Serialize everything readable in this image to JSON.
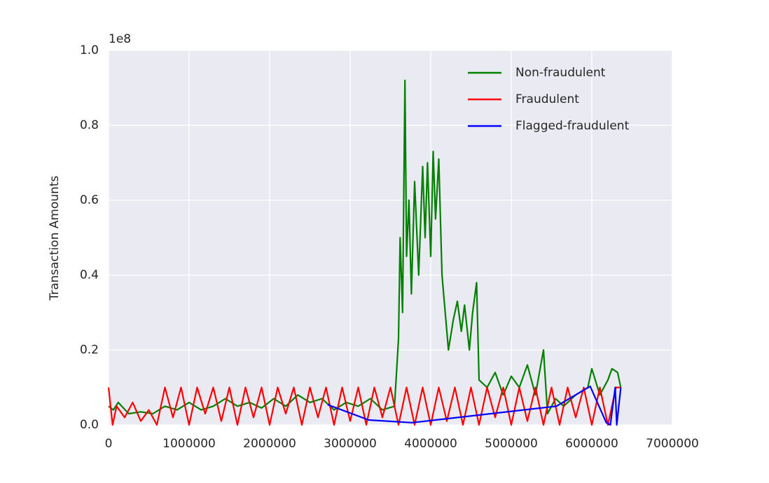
{
  "chart_data": {
    "type": "line",
    "ylabel": "Transaction Amounts",
    "y_offset_label": "1e8",
    "xlim": [
      0,
      7000000
    ],
    "xticks": [
      0,
      1000000,
      2000000,
      3000000,
      4000000,
      5000000,
      6000000,
      7000000
    ],
    "ylim": [
      0,
      1
    ],
    "yticks": [
      {
        "value": 0,
        "label": "0.0"
      },
      0.2,
      0.4,
      0.6,
      0.8,
      {
        "value": 1,
        "label": "1.0"
      }
    ],
    "grid": true,
    "legend": "upper right",
    "series": [
      {
        "name": "Non-fraudulent",
        "color": "#008000",
        "x": [
          0,
          60000,
          120000,
          250000,
          400000,
          550000,
          700000,
          850000,
          1000000,
          1150000,
          1300000,
          1450000,
          1600000,
          1750000,
          1900000,
          2050000,
          2200000,
          2350000,
          2500000,
          2650000,
          2800000,
          2950000,
          3100000,
          3250000,
          3400000,
          3550000,
          3600000,
          3620000,
          3650000,
          3680000,
          3700000,
          3730000,
          3760000,
          3800000,
          3850000,
          3900000,
          3930000,
          3960000,
          4000000,
          4030000,
          4060000,
          4100000,
          4140000,
          4180000,
          4220000,
          4280000,
          4330000,
          4380000,
          4420000,
          4480000,
          4520000,
          4570000,
          4600000,
          4700000,
          4800000,
          4900000,
          5000000,
          5100000,
          5200000,
          5300000,
          5400000,
          5450000,
          5550000,
          5650000,
          5800000,
          5950000,
          6000000,
          6100000,
          6200000,
          6250000,
          6320000,
          6360000
        ],
        "values": [
          0.05,
          0.04,
          0.06,
          0.03,
          0.035,
          0.03,
          0.05,
          0.04,
          0.06,
          0.04,
          0.05,
          0.07,
          0.05,
          0.06,
          0.045,
          0.07,
          0.05,
          0.08,
          0.06,
          0.07,
          0.04,
          0.06,
          0.05,
          0.07,
          0.04,
          0.05,
          0.23,
          0.5,
          0.3,
          0.92,
          0.45,
          0.6,
          0.35,
          0.65,
          0.4,
          0.69,
          0.5,
          0.7,
          0.45,
          0.73,
          0.55,
          0.71,
          0.4,
          0.3,
          0.2,
          0.28,
          0.33,
          0.25,
          0.32,
          0.2,
          0.3,
          0.38,
          0.12,
          0.1,
          0.14,
          0.08,
          0.13,
          0.1,
          0.16,
          0.08,
          0.2,
          0.03,
          0.07,
          0.05,
          0.08,
          0.1,
          0.15,
          0.08,
          0.12,
          0.15,
          0.14,
          0.1
        ]
      },
      {
        "name": "Fraudulent",
        "color": "#ff0000",
        "x": [
          0,
          50000,
          100000,
          200000,
          300000,
          400000,
          500000,
          600000,
          700000,
          800000,
          900000,
          1000000,
          1100000,
          1200000,
          1300000,
          1400000,
          1500000,
          1600000,
          1700000,
          1800000,
          1900000,
          2000000,
          2100000,
          2200000,
          2300000,
          2400000,
          2500000,
          2600000,
          2700000,
          2800000,
          2900000,
          3000000,
          3100000,
          3200000,
          3300000,
          3400000,
          3500000,
          3600000,
          3700000,
          3800000,
          3900000,
          4000000,
          4100000,
          4200000,
          4300000,
          4400000,
          4500000,
          4600000,
          4700000,
          4800000,
          4900000,
          5000000,
          5100000,
          5200000,
          5300000,
          5400000,
          5500000,
          5600000,
          5700000,
          5800000,
          5900000,
          6000000,
          6100000,
          6200000,
          6300000,
          6360000
        ],
        "values": [
          0.1,
          0.0,
          0.05,
          0.02,
          0.06,
          0.01,
          0.04,
          0.0,
          0.1,
          0.02,
          0.1,
          0.0,
          0.1,
          0.03,
          0.1,
          0.01,
          0.1,
          0.0,
          0.1,
          0.02,
          0.1,
          0.0,
          0.1,
          0.03,
          0.1,
          0.0,
          0.1,
          0.02,
          0.1,
          0.0,
          0.1,
          0.01,
          0.1,
          0.0,
          0.1,
          0.02,
          0.1,
          0.0,
          0.1,
          0.0,
          0.1,
          0.0,
          0.1,
          0.01,
          0.1,
          0.0,
          0.1,
          0.0,
          0.1,
          0.02,
          0.1,
          0.0,
          0.1,
          0.01,
          0.1,
          0.0,
          0.1,
          0.0,
          0.1,
          0.02,
          0.1,
          0.0,
          0.1,
          0.0,
          0.1,
          0.1
        ]
      },
      {
        "name": "Flagged-fraudulent",
        "color": "#0000ff",
        "x": [
          2720000,
          3230000,
          3770000,
          5560000,
          5980000,
          6180000,
          6230000,
          6290000,
          6310000,
          6360000
        ],
        "values": [
          0.054,
          0.013,
          0.006,
          0.05,
          0.103,
          0.006,
          0.0,
          0.1,
          0.0,
          0.1
        ]
      }
    ]
  }
}
